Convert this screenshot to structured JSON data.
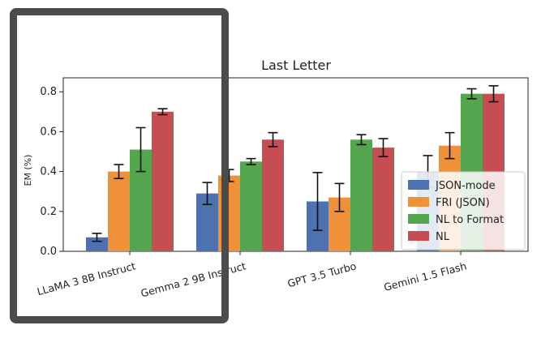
{
  "chart_data": {
    "type": "bar",
    "title": "Last Letter",
    "ylabel": "EM (%)",
    "xlabel": "",
    "ylim": [
      0,
      0.87
    ],
    "yticks": [
      "0.0",
      "0.2",
      "0.4",
      "0.6",
      "0.8"
    ],
    "categories": [
      "LLaMA 3 8B Instruct",
      "Gemma 2 9B Instruct",
      "GPT 3.5 Turbo",
      "Gemini 1.5 Flash"
    ],
    "series": [
      {
        "name": "JSON-mode",
        "color": "#4c72b0",
        "values": [
          0.07,
          0.29,
          0.25,
          0.4
        ],
        "err": [
          0.02,
          0.055,
          0.145,
          0.08
        ]
      },
      {
        "name": "FRI (JSON)",
        "color": "#f0913a",
        "values": [
          0.4,
          0.38,
          0.27,
          0.53
        ],
        "err": [
          0.035,
          0.03,
          0.07,
          0.065
        ]
      },
      {
        "name": "NL to Format",
        "color": "#55a44e",
        "values": [
          0.51,
          0.45,
          0.56,
          0.79
        ],
        "err": [
          0.11,
          0.015,
          0.025,
          0.025
        ]
      },
      {
        "name": "NL",
        "color": "#c44e52",
        "values": [
          0.7,
          0.56,
          0.52,
          0.79
        ],
        "err": [
          0.015,
          0.035,
          0.045,
          0.04
        ]
      }
    ],
    "legend": "lower-right",
    "grid": false
  }
}
